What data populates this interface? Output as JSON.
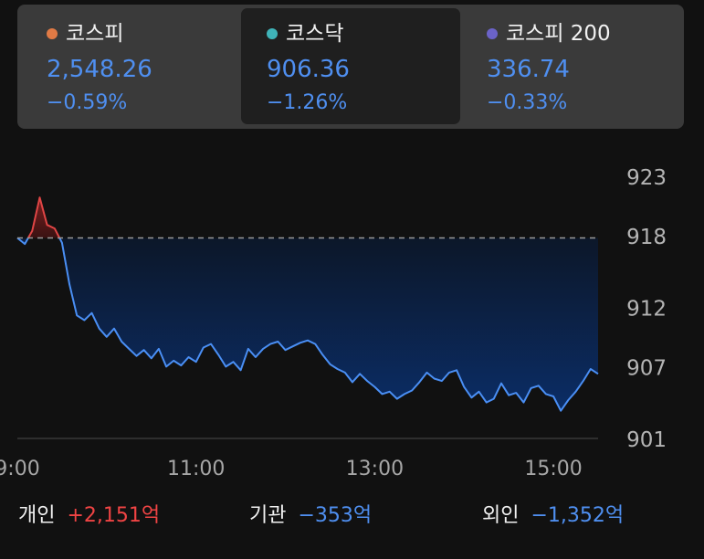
{
  "indices": [
    {
      "name": "코스피",
      "value": "2,548.26",
      "change": "−0.59%",
      "dot_color": "#e07a45",
      "active": false
    },
    {
      "name": "코스닥",
      "value": "906.36",
      "change": "−1.26%",
      "dot_color": "#3fb3b8",
      "active": true
    },
    {
      "name": "코스피 200",
      "value": "336.74",
      "change": "−0.33%",
      "dot_color": "#6b63c8",
      "active": false
    }
  ],
  "chart_data": {
    "type": "area",
    "title": "",
    "xlabel": "",
    "ylabel": "",
    "yticks": [
      923,
      918,
      912,
      907,
      901
    ],
    "ylim": [
      901,
      923
    ],
    "xticks": [
      "9:00",
      "11:00",
      "13:00",
      "15:00"
    ],
    "xlim": [
      "9:00",
      "15:30"
    ],
    "reference_value": 917.9,
    "grid": false,
    "colors": {
      "up_line": "#e04545",
      "down_line": "#4a8ff5",
      "reference": "#9a9a9a"
    },
    "series": [
      {
        "x": [
          "9:00",
          "9:05",
          "9:10",
          "9:15",
          "9:20",
          "9:25",
          "9:30",
          "9:35",
          "9:40",
          "9:45",
          "9:50",
          "9:55",
          "10:00",
          "10:05",
          "10:10",
          "10:15",
          "10:20",
          "10:25",
          "10:30",
          "10:35",
          "10:40",
          "10:45",
          "10:50",
          "10:55",
          "11:00",
          "11:05",
          "11:10",
          "11:15",
          "11:20",
          "11:25",
          "11:30",
          "11:35",
          "11:40",
          "11:45",
          "11:50",
          "11:55",
          "12:00",
          "12:05",
          "12:10",
          "12:15",
          "12:20",
          "12:25",
          "12:30",
          "12:35",
          "12:40",
          "12:45",
          "12:50",
          "12:55",
          "13:00",
          "13:05",
          "13:10",
          "13:15",
          "13:20",
          "13:25",
          "13:30",
          "13:35",
          "13:40",
          "13:45",
          "13:50",
          "13:55",
          "14:00",
          "14:05",
          "14:10",
          "14:15",
          "14:20",
          "14:25",
          "14:30",
          "14:35",
          "14:40",
          "14:45",
          "14:50",
          "14:55",
          "15:00",
          "15:05",
          "15:10",
          "15:15",
          "15:20",
          "15:25",
          "15:30"
        ],
        "values": [
          917.9,
          917.4,
          918.5,
          921.3,
          919.0,
          918.7,
          917.5,
          914.0,
          911.4,
          911.0,
          911.6,
          910.3,
          909.6,
          910.3,
          909.2,
          908.6,
          908.0,
          908.5,
          907.8,
          908.6,
          907.1,
          907.6,
          907.2,
          907.9,
          907.5,
          908.7,
          909.0,
          908.1,
          907.1,
          907.5,
          906.8,
          908.6,
          907.9,
          908.6,
          909.0,
          909.2,
          908.5,
          908.8,
          909.1,
          909.3,
          909.0,
          908.1,
          907.3,
          906.9,
          906.6,
          905.8,
          906.5,
          905.9,
          905.4,
          904.8,
          905.0,
          904.4,
          904.8,
          905.1,
          905.8,
          906.6,
          906.1,
          905.9,
          906.6,
          906.8,
          905.4,
          904.5,
          905.0,
          904.1,
          904.4,
          905.7,
          904.7,
          904.9,
          904.1,
          905.3,
          905.5,
          904.8,
          904.6,
          903.4,
          904.3,
          905.0,
          905.9,
          906.9,
          906.5
        ]
      }
    ]
  },
  "investor_flows": [
    {
      "label": "개인",
      "value": "+2,151억",
      "direction": "up"
    },
    {
      "label": "기관",
      "value": "−353억",
      "direction": "down"
    },
    {
      "label": "외인",
      "value": "−1,352억",
      "direction": "down"
    }
  ]
}
